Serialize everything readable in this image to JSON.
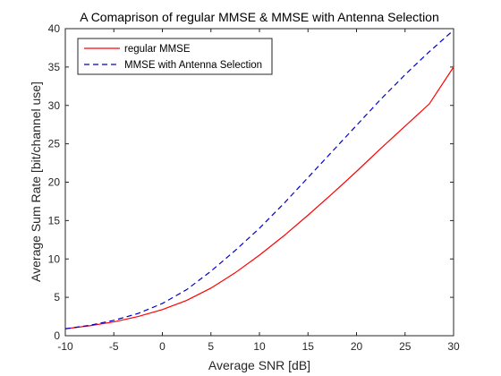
{
  "chart_data": {
    "type": "line",
    "title": "A Comaprison of regular MMSE & MMSE with Antenna Selection",
    "xlabel": "Average SNR [dB]",
    "ylabel": "Average Sum Rate [bit/channel use]",
    "xlim": [
      -10,
      30
    ],
    "ylim": [
      0,
      40
    ],
    "xticks": [
      -10,
      -5,
      0,
      5,
      10,
      15,
      20,
      25,
      30
    ],
    "yticks": [
      0,
      5,
      10,
      15,
      20,
      25,
      30,
      35,
      40
    ],
    "xtick_labels": [
      "-10",
      "-5",
      "0",
      "5",
      "10",
      "15",
      "20",
      "25",
      "30"
    ],
    "ytick_labels": [
      "0",
      "5",
      "10",
      "15",
      "20",
      "25",
      "30",
      "35",
      "40"
    ],
    "grid": false,
    "legend_position": "top-left",
    "series": [
      {
        "name": "regular MMSE",
        "color": "#ff0000",
        "style": "solid",
        "x": [
          -10,
          -7.5,
          -5,
          -2.5,
          0,
          2.5,
          5,
          7.5,
          10,
          12.5,
          15,
          17.5,
          20,
          22.5,
          25,
          27.5,
          30
        ],
        "y": [
          0.9,
          1.3,
          1.8,
          2.5,
          3.4,
          4.6,
          6.2,
          8.2,
          10.5,
          13.0,
          15.7,
          18.5,
          21.4,
          24.4,
          27.3,
          30.2,
          35.0
        ]
      },
      {
        "name": "MMSE with Antenna Selection",
        "color": "#0000cc",
        "style": "dashed",
        "x": [
          -10,
          -7.5,
          -5,
          -2.5,
          0,
          2.5,
          5,
          7.5,
          10,
          12.5,
          15,
          17.5,
          20,
          22.5,
          25,
          27.5,
          30
        ],
        "y": [
          0.9,
          1.35,
          2.0,
          2.9,
          4.2,
          6.0,
          8.4,
          11.1,
          14.0,
          17.2,
          20.6,
          24.0,
          27.4,
          30.8,
          34.0,
          37.0,
          39.8
        ]
      }
    ]
  }
}
